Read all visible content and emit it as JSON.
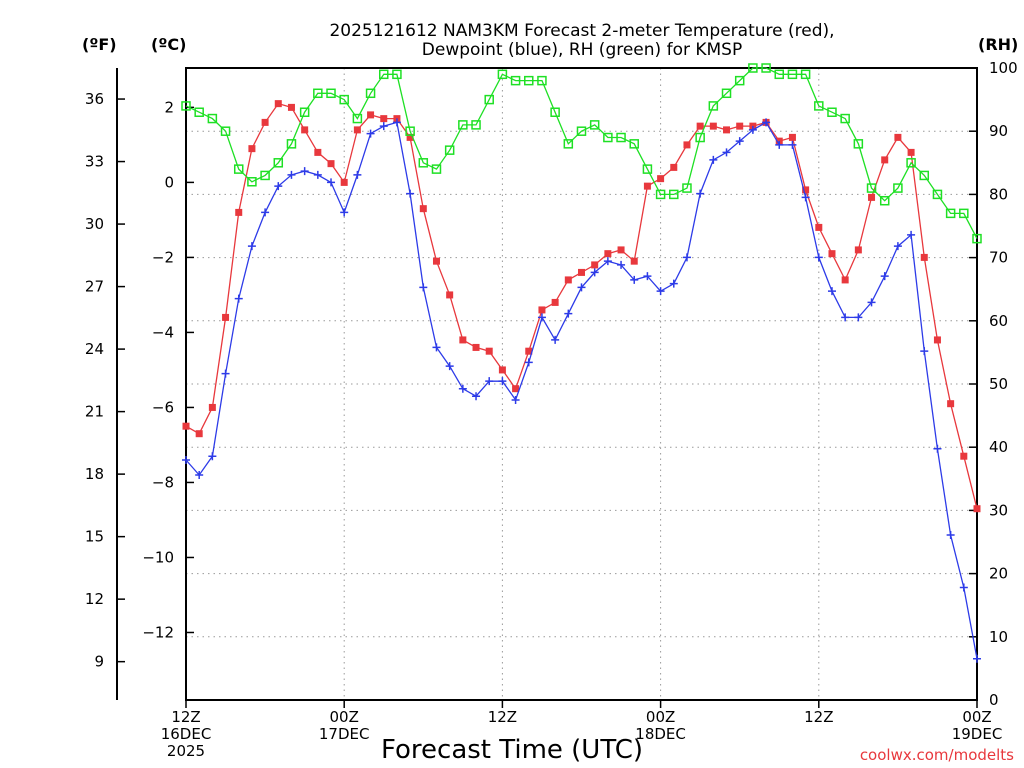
{
  "chart_data": {
    "type": "line",
    "title_lines": [
      "2025121612 NAM3KM Forecast 2-meter Temperature (red),",
      "Dewpoint (blue), RH (green) for KMSP"
    ],
    "xlabel": "Forecast Time (UTC)",
    "credit": "coolwx.com/modelts",
    "x_range_hours": [
      0,
      60
    ],
    "x_ticks": [
      {
        "hour": 0,
        "lines": [
          "12Z",
          "16DEC",
          "2025"
        ]
      },
      {
        "hour": 12,
        "lines": [
          "00Z",
          "17DEC"
        ]
      },
      {
        "hour": 24,
        "lines": [
          "12Z"
        ]
      },
      {
        "hour": 36,
        "lines": [
          "00Z",
          "18DEC"
        ]
      },
      {
        "hour": 48,
        "lines": [
          "12Z"
        ]
      },
      {
        "hour": 60,
        "lines": [
          "00Z",
          "19DEC"
        ]
      }
    ],
    "left_axis_f": {
      "unit": "(ºF)",
      "ticks": [
        "36",
        "33",
        "30",
        "27",
        "24",
        "21",
        "18",
        "15",
        "12",
        "9"
      ]
    },
    "left_axis_c": {
      "unit": "(ºC)",
      "ylim": [
        -13.8,
        3.05
      ],
      "ticks": [
        "2",
        "0",
        "−2",
        "−4",
        "−6",
        "−8",
        "−10",
        "−12"
      ]
    },
    "right_axis_rh": {
      "unit": "(RH)",
      "ylim": [
        0,
        100
      ],
      "ticks": [
        "100",
        "90",
        "80",
        "70",
        "60",
        "50",
        "40",
        "30",
        "20",
        "10",
        "0"
      ]
    },
    "series": [
      {
        "name": "Temperature",
        "units": "degC",
        "color": "#e8383d",
        "marker": "filled-square",
        "values": [
          -6.5,
          -6.7,
          -6.0,
          -3.6,
          -0.8,
          0.9,
          1.6,
          2.1,
          2.0,
          1.4,
          0.8,
          0.5,
          0.0,
          1.4,
          1.8,
          1.7,
          1.7,
          1.2,
          -0.7,
          -2.1,
          -3.0,
          -4.2,
          -4.4,
          -4.5,
          -5.0,
          -5.5,
          -4.5,
          -3.4,
          -3.2,
          -2.6,
          -2.4,
          -2.2,
          -1.9,
          -1.8,
          -2.1,
          -0.1,
          0.1,
          0.4,
          1.0,
          1.5,
          1.5,
          1.4,
          1.5,
          1.5,
          1.6,
          1.1,
          1.2,
          -0.2,
          -1.2,
          -1.9,
          -2.6,
          -1.8,
          -0.4,
          0.6,
          1.2,
          0.8,
          -2.0,
          -4.2,
          -5.9,
          -7.3,
          -8.7
        ]
      },
      {
        "name": "Dewpoint",
        "units": "degC",
        "color": "#2d3be8",
        "marker": "plus",
        "values": [
          -7.4,
          -7.8,
          -7.3,
          -5.1,
          -3.1,
          -1.7,
          -0.8,
          -0.1,
          0.2,
          0.3,
          0.2,
          0.0,
          -0.8,
          0.2,
          1.3,
          1.5,
          1.6,
          -0.3,
          -2.8,
          -4.4,
          -4.9,
          -5.5,
          -5.7,
          -5.3,
          -5.3,
          -5.8,
          -4.8,
          -3.6,
          -4.2,
          -3.5,
          -2.8,
          -2.4,
          -2.1,
          -2.2,
          -2.6,
          -2.5,
          -2.9,
          -2.7,
          -2.0,
          -0.3,
          0.6,
          0.8,
          1.1,
          1.4,
          1.6,
          1.0,
          1.0,
          -0.4,
          -2.0,
          -2.9,
          -3.6,
          -3.6,
          -3.2,
          -2.5,
          -1.7,
          -1.4,
          -4.5,
          -7.1,
          -9.4,
          -10.8,
          -12.7
        ]
      },
      {
        "name": "RH",
        "units": "%",
        "color": "#1ee024",
        "marker": "open-square",
        "values": [
          94,
          93,
          92,
          90,
          84,
          82,
          83,
          85,
          88,
          93,
          96,
          96,
          95,
          92,
          96,
          99,
          99,
          90,
          85,
          84,
          87,
          91,
          91,
          95,
          99,
          98,
          98,
          98,
          93,
          88,
          90,
          91,
          89,
          89,
          88,
          84,
          80,
          80,
          81,
          89,
          94,
          96,
          98,
          100,
          100,
          99,
          99,
          99,
          94,
          93,
          92,
          88,
          81,
          79,
          81,
          85,
          83,
          80,
          77,
          77,
          73
        ]
      }
    ]
  }
}
